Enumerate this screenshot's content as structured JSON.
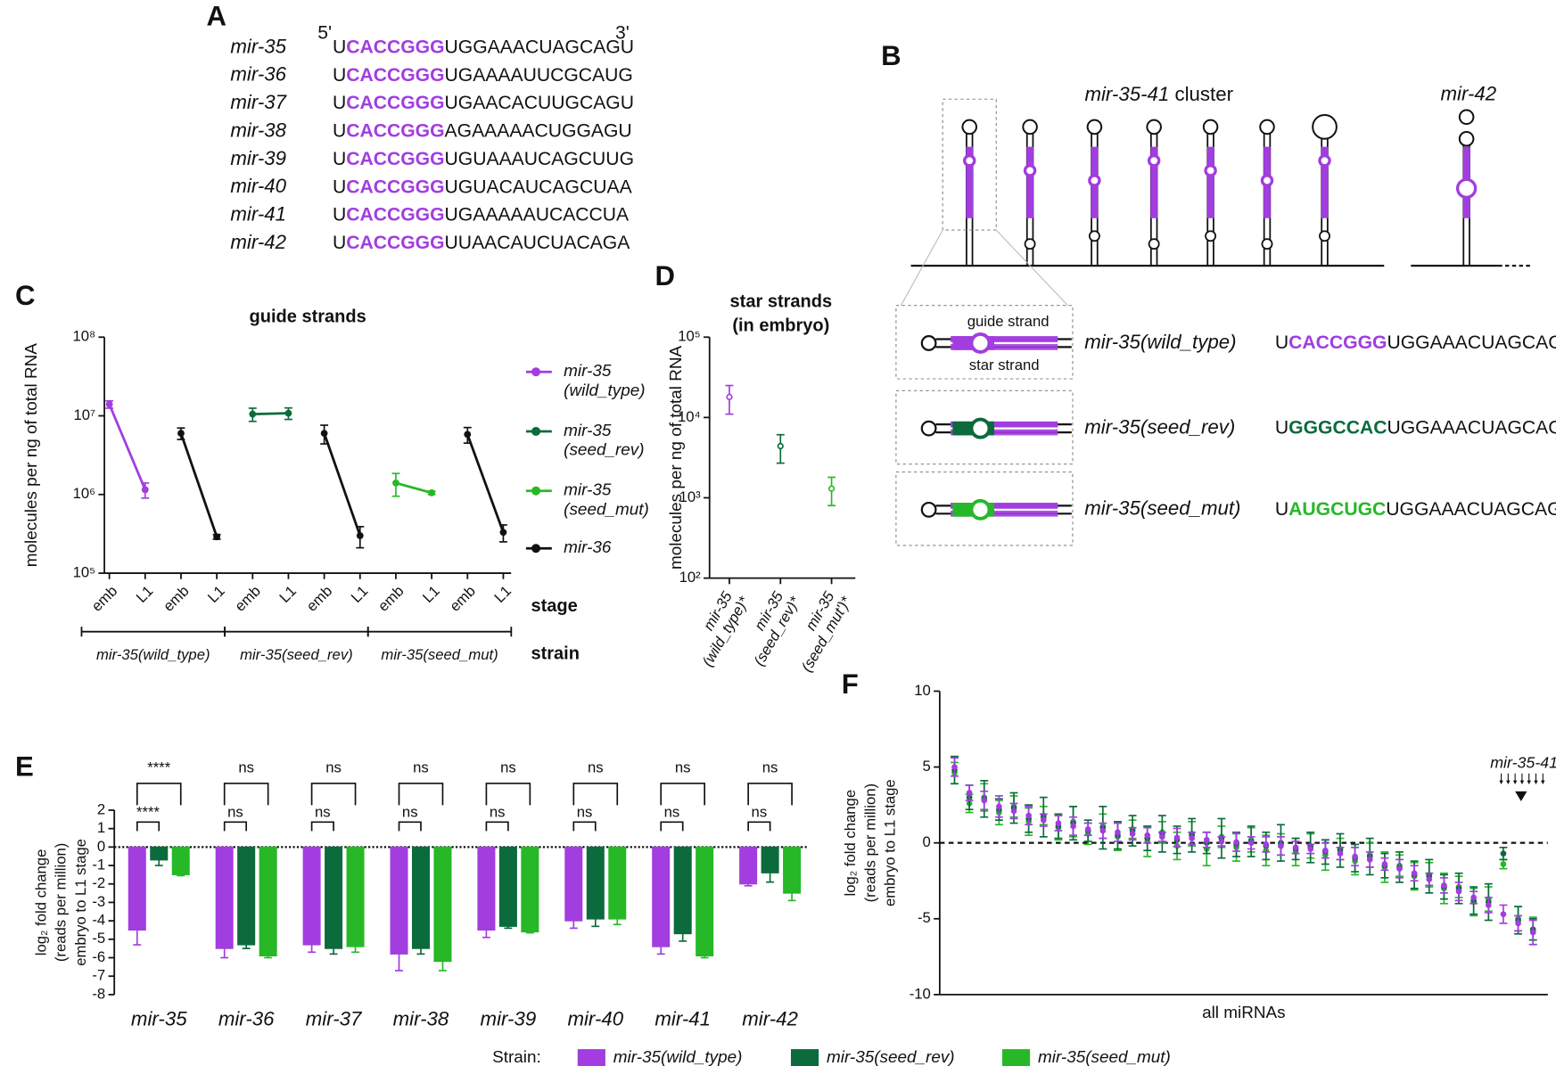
{
  "panel_a": {
    "label": "A",
    "five_prime": "5'",
    "three_prime": "3'",
    "seed_color": "#a23de0",
    "rows": [
      {
        "name": "mir-35",
        "seq": [
          "U",
          "CACCGGG",
          "UGGAAACUAGCAGU"
        ]
      },
      {
        "name": "mir-36",
        "seq": [
          "U",
          "CACCGGG",
          "UGAAAAUUCGCAUG"
        ]
      },
      {
        "name": "mir-37",
        "seq": [
          "U",
          "CACCGGG",
          "UGAACACUUGCAGU"
        ]
      },
      {
        "name": "mir-38",
        "seq": [
          "U",
          "CACCGGG",
          "AGAAAAACUGGAGU"
        ]
      },
      {
        "name": "mir-39",
        "seq": [
          "U",
          "CACCGGG",
          "UGUAAAUCAGCUUG"
        ]
      },
      {
        "name": "mir-40",
        "seq": [
          "U",
          "CACCGGG",
          "UGUACAUCAGCUAA"
        ]
      },
      {
        "name": "mir-41",
        "seq": [
          "U",
          "CACCGGG",
          "UGAAAAAUCACCUA"
        ]
      },
      {
        "name": "mir-42",
        "seq": [
          "U",
          "CACCGGG",
          "UUAACAUCUACAGA"
        ]
      }
    ]
  },
  "panel_b": {
    "label": "B",
    "cluster_name": "mir-35-41",
    "cluster_word": "cluster",
    "single_name": "mir-42",
    "guide_label": "guide strand",
    "star_label": "star strand",
    "strains": [
      {
        "name": "mir-35(wild_type)",
        "seq": [
          "U",
          "CACCGGG",
          "UGGAAACUAGCAGU"
        ],
        "seed_color": "#a23de0"
      },
      {
        "name": "mir-35(seed_rev)",
        "seq": [
          "U",
          "GGGCCAC",
          "UGGAAACUAGCAGU"
        ],
        "seed_color": "#0b6b3c"
      },
      {
        "name": "mir-35(seed_mut)",
        "seq": [
          "U",
          "AUGCUGC",
          "UGGAAACUAGCAGU"
        ],
        "seed_color": "#27b827"
      }
    ]
  },
  "chart_data": [
    {
      "panel": "C",
      "type": "line",
      "title": "guide strands",
      "ylabel": "molecules per ng of total RNA",
      "log_scale": true,
      "categories": [
        "emb",
        "L1",
        "emb",
        "L1",
        "emb",
        "L1",
        "emb",
        "L1",
        "emb",
        "L1",
        "emb",
        "L1"
      ],
      "stage_label": "stage",
      "group_label": "strain",
      "groups": [
        "mir-35(wild_type)",
        "mir-35(seed_rev)",
        "mir-35(seed_mut)"
      ],
      "ylim": [
        100000,
        100000000
      ],
      "yticks": [
        {
          "value": 100000,
          "label": "10⁵"
        },
        {
          "value": 1000000,
          "label": "10⁶"
        },
        {
          "value": 10000000,
          "label": "10⁷"
        },
        {
          "value": 100000000,
          "label": "10⁸"
        }
      ],
      "legend": "right",
      "series": [
        {
          "name": "mir-35 (wild_type)",
          "color": "#a23de0",
          "values": [
            14000000,
            1150000,
            null,
            null,
            null,
            null,
            null,
            null,
            null,
            null,
            null,
            null
          ],
          "errors": [
            1500000,
            250000,
            null,
            null,
            null,
            null,
            null,
            null,
            null,
            null,
            null,
            null
          ]
        },
        {
          "name": "mir-35 (seed_rev)",
          "color": "#0b6b3c",
          "values": [
            null,
            null,
            null,
            null,
            10500000,
            10800000,
            null,
            null,
            null,
            null,
            null,
            null
          ],
          "errors": [
            null,
            null,
            null,
            null,
            2000000,
            1800000,
            null,
            null,
            null,
            null,
            null,
            null
          ]
        },
        {
          "name": "mir-35 (seed_mut)",
          "color": "#27b827",
          "values": [
            null,
            null,
            null,
            null,
            null,
            null,
            null,
            null,
            1400000,
            1050000,
            null,
            null
          ],
          "errors": [
            null,
            null,
            null,
            null,
            null,
            null,
            null,
            null,
            450000,
            50000,
            null,
            null
          ]
        },
        {
          "name": "mir-36",
          "color": "#111111",
          "values": [
            null,
            null,
            6000000,
            290000,
            null,
            null,
            6000000,
            300000,
            null,
            null,
            5800000,
            330000
          ],
          "errors": [
            null,
            null,
            1000000,
            20000,
            null,
            null,
            1600000,
            90000,
            null,
            null,
            1300000,
            80000
          ]
        }
      ]
    },
    {
      "panel": "D",
      "type": "errorpoint",
      "title": "star strands",
      "subtitle": "(in embryo)",
      "ylabel": "molecules per ng of total RNA",
      "log_scale": true,
      "categories": [
        "mir-35 (wild_type)*",
        "mir-35 (seed_rev)*",
        "mir-35 (seed_mut')*"
      ],
      "values": [
        18000,
        4400,
        1300
      ],
      "errors": [
        7000,
        1700,
        500
      ],
      "colors": [
        "#a23de0",
        "#0b6b3c",
        "#27b827"
      ],
      "ylim": [
        100,
        100000
      ],
      "yticks": [
        {
          "value": 100,
          "label": "10²"
        },
        {
          "value": 1000,
          "label": "10³"
        },
        {
          "value": 10000,
          "label": "10⁴"
        },
        {
          "value": 100000,
          "label": "10⁵"
        }
      ]
    },
    {
      "panel": "E",
      "type": "bar",
      "ylabel": [
        "log₂ fold change",
        "(reads per million)",
        "embryo to L1 stage"
      ],
      "categories": [
        "mir-35",
        "mir-36",
        "mir-37",
        "mir-38",
        "mir-39",
        "mir-40",
        "mir-41",
        "mir-42"
      ],
      "ylim": [
        -8,
        2
      ],
      "yticks": [
        -8,
        -7,
        -6,
        -5,
        -4,
        -3,
        -2,
        -1,
        0,
        1,
        2
      ],
      "zero_line": true,
      "legend": "bottom",
      "legend_title": "Strain:",
      "series": [
        {
          "name": "mir-35(wild_type)",
          "color": "#a23de0",
          "values": [
            -4.5,
            -5.5,
            -5.3,
            -5.8,
            -4.5,
            -4.0,
            -5.4,
            -2.0
          ],
          "errors": [
            0.8,
            0.5,
            0.4,
            0.9,
            0.4,
            0.4,
            0.4,
            0.1
          ]
        },
        {
          "name": "mir-35(seed_rev)",
          "color": "#0b6b3c",
          "values": [
            -0.7,
            -5.3,
            -5.5,
            -5.5,
            -4.3,
            -3.9,
            -4.7,
            -1.4
          ],
          "errors": [
            0.3,
            0.2,
            0.3,
            0.3,
            0.1,
            0.4,
            0.4,
            0.5
          ]
        },
        {
          "name": "mir-35(seed_mut)",
          "color": "#27b827",
          "values": [
            -1.5,
            -5.9,
            -5.4,
            -6.2,
            -4.6,
            -3.9,
            -5.9,
            -2.5
          ],
          "errors": [
            0.05,
            0.1,
            0.3,
            0.5,
            0.05,
            0.3,
            0.1,
            0.4
          ]
        }
      ],
      "significance": [
        [
          "****",
          "****"
        ],
        [
          "ns",
          "ns"
        ],
        [
          "ns",
          "ns"
        ],
        [
          "ns",
          "ns"
        ],
        [
          "ns",
          "ns"
        ],
        [
          "ns",
          "ns"
        ],
        [
          "ns",
          "ns"
        ],
        [
          "ns",
          "ns"
        ]
      ]
    },
    {
      "panel": "F",
      "type": "scatter",
      "xlabel": "all miRNAs",
      "ylabel": [
        "log₂ fold change",
        "(reads per million)",
        "embryo to L1 stage"
      ],
      "annotation": "mir-35-41",
      "zero_line": true,
      "xlim": [
        0,
        41
      ],
      "ylim": [
        -10,
        10
      ],
      "yticks": [
        -10,
        -5,
        0,
        5,
        10
      ],
      "x": [
        1,
        2,
        3,
        4,
        5,
        6,
        7,
        8,
        9,
        10,
        11,
        12,
        13,
        14,
        15,
        16,
        17,
        18,
        19,
        20,
        21,
        22,
        23,
        24,
        25,
        26,
        27,
        28,
        29,
        30,
        31,
        32,
        33,
        34,
        35,
        36,
        37,
        38,
        39,
        40
      ],
      "series": [
        {
          "color": "#27b827",
          "values": [
            4.6,
            2.6,
            3.0,
            2.0,
            2.4,
            1.4,
            1.8,
            1.0,
            1.4,
            0.6,
            1.1,
            0.4,
            0.9,
            0.1,
            0.7,
            -0.2,
            0.6,
            -0.4,
            0.4,
            -0.3,
            0.2,
            -0.5,
            -0.1,
            -0.6,
            -0.2,
            -0.8,
            -0.4,
            -1.2,
            -0.8,
            -1.6,
            -1.5,
            -2.2,
            -2.1,
            -3.0,
            -2.9,
            -3.9,
            -3.7,
            -1.4,
            -5.0,
            -5.8
          ],
          "errors": [
            0.7,
            0.6,
            0.9,
            0.8,
            0.7,
            0.9,
            0.6,
            0.8,
            1.0,
            0.7,
            0.8,
            0.9,
            0.6,
            1.0,
            0.7,
            0.9,
            0.8,
            1.1,
            0.7,
            0.9,
            0.8,
            1.0,
            0.7,
            0.9,
            0.8,
            1.0,
            0.7,
            0.9,
            0.8,
            1.0,
            0.7,
            0.9,
            0.8,
            1.0,
            0.7,
            0.9,
            0.8,
            0.3,
            0.8,
            0.9
          ]
        },
        {
          "color": "#0b6b3c",
          "values": [
            4.8,
            3.0,
            2.9,
            2.2,
            2.3,
            1.6,
            1.7,
            1.1,
            1.3,
            0.8,
            1.0,
            0.5,
            0.8,
            0.3,
            0.6,
            0.2,
            0.5,
            0.0,
            0.3,
            -0.1,
            0.1,
            -0.2,
            0.0,
            -0.4,
            -0.3,
            -0.6,
            -0.5,
            -1.0,
            -0.9,
            -1.5,
            -1.6,
            -2.1,
            -2.2,
            -2.9,
            -3.0,
            -3.8,
            -3.9,
            -0.7,
            -5.1,
            -5.7
          ],
          "errors": [
            0.9,
            0.8,
            1.2,
            0.7,
            1.0,
            0.9,
            1.3,
            0.8,
            1.1,
            0.7,
            1.4,
            0.9,
            1.0,
            0.8,
            1.2,
            0.9,
            1.1,
            0.7,
            1.3,
            0.8,
            1.0,
            0.9,
            1.2,
            0.7,
            1.0,
            0.8,
            1.1,
            0.9,
            1.2,
            0.8,
            1.0,
            0.9,
            1.1,
            0.8,
            1.0,
            0.9,
            1.2,
            0.4,
            0.9,
            0.7
          ]
        },
        {
          "color": "#a23de0",
          "values": [
            5.0,
            3.3,
            2.8,
            2.4,
            2.1,
            1.8,
            1.5,
            1.3,
            1.1,
            0.9,
            0.8,
            0.7,
            0.6,
            0.5,
            0.4,
            0.35,
            0.3,
            0.2,
            0.1,
            0.05,
            0.0,
            -0.1,
            -0.2,
            -0.3,
            -0.4,
            -0.5,
            -0.7,
            -0.9,
            -1.1,
            -1.4,
            -1.7,
            -2.0,
            -2.4,
            -2.8,
            -3.2,
            -3.6,
            -4.1,
            -4.7,
            -5.3,
            -5.9
          ],
          "errors": [
            0.6,
            0.5,
            0.6,
            0.7,
            0.5,
            0.6,
            0.4,
            0.5,
            0.6,
            0.4,
            0.5,
            0.6,
            0.4,
            0.5,
            0.3,
            0.6,
            0.4,
            0.5,
            0.3,
            0.6,
            0.4,
            0.5,
            0.6,
            0.4,
            0.3,
            0.5,
            0.4,
            0.6,
            0.5,
            0.4,
            0.6,
            0.5,
            0.4,
            0.5,
            0.6,
            0.4,
            0.5,
            0.6,
            0.5,
            0.8
          ]
        }
      ]
    }
  ]
}
